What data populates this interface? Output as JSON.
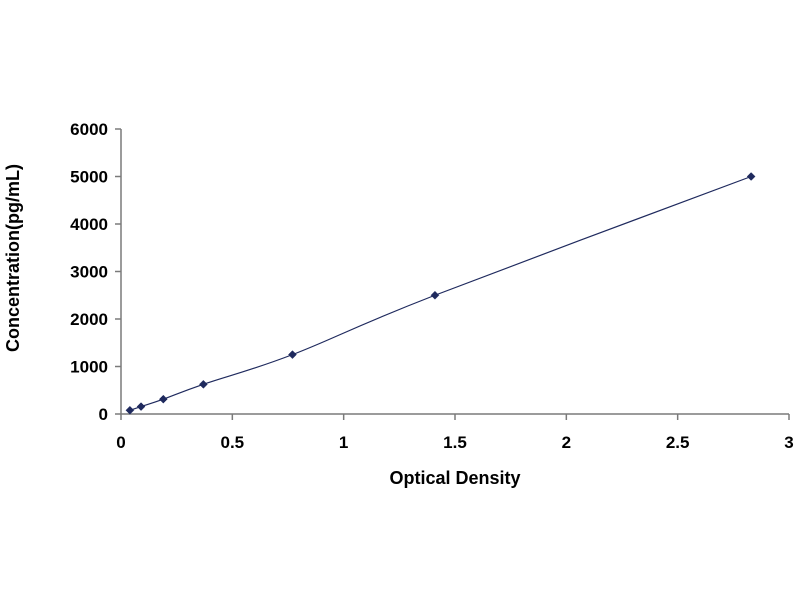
{
  "chart_data": {
    "type": "scatter",
    "title": "",
    "xlabel": "Optical Density",
    "ylabel": "Concentration(pg/mL)",
    "xlim": [
      0,
      3
    ],
    "ylim": [
      0,
      6000
    ],
    "x_ticks": [
      "0",
      "0.5",
      "1",
      "1.5",
      "2",
      "2.5",
      "3"
    ],
    "y_ticks": [
      "0",
      "1000",
      "2000",
      "3000",
      "4000",
      "5000",
      "6000"
    ],
    "grid": false,
    "legend": "none",
    "series": [
      {
        "x": [
          0.04,
          0.09,
          0.19,
          0.37,
          0.77,
          1.41,
          2.83
        ],
        "y": [
          78,
          156,
          312,
          625,
          1250,
          2500,
          5000
        ],
        "marker": "diamond",
        "line": "smooth",
        "color": "#1f2a5e"
      }
    ]
  }
}
